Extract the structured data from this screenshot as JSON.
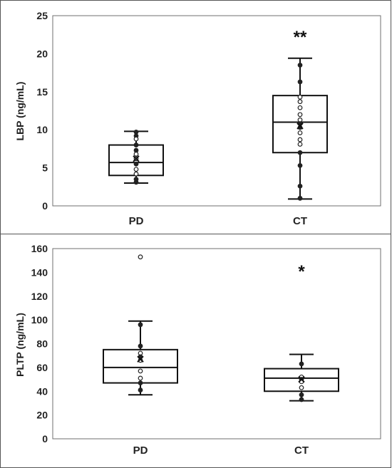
{
  "chart_data": [
    {
      "type": "boxplot",
      "ylabel": "LBP (ng/mL)",
      "ylim": [
        0,
        25
      ],
      "yticks": [
        "0",
        "5",
        "10",
        "15",
        "20",
        "25"
      ],
      "categories": [
        "PD",
        "CT"
      ],
      "grid": false,
      "boxes": [
        {
          "category": "PD",
          "whisker_low": 3.0,
          "q1": 4.0,
          "median": 5.7,
          "q3": 8.0,
          "whisker_high": 9.8,
          "mean": 6.2,
          "significance": "",
          "points": [
            {
              "value": 9.7,
              "filled": true
            },
            {
              "value": 9.2,
              "filled": true
            },
            {
              "value": 8.8,
              "filled": false
            },
            {
              "value": 8.0,
              "filled": true
            },
            {
              "value": 7.3,
              "filled": true
            },
            {
              "value": 6.8,
              "filled": false
            },
            {
              "value": 6.2,
              "filled": false
            },
            {
              "value": 5.5,
              "filled": true
            },
            {
              "value": 4.8,
              "filled": false
            },
            {
              "value": 4.2,
              "filled": false
            },
            {
              "value": 3.5,
              "filled": true
            },
            {
              "value": 3.1,
              "filled": true
            }
          ]
        },
        {
          "category": "CT",
          "whisker_low": 0.9,
          "q1": 7.0,
          "median": 11.0,
          "q3": 14.5,
          "whisker_high": 19.4,
          "mean": 10.5,
          "significance": "**",
          "points": [
            {
              "value": 18.5,
              "filled": true
            },
            {
              "value": 16.3,
              "filled": true
            },
            {
              "value": 14.3,
              "filled": false
            },
            {
              "value": 13.7,
              "filled": false
            },
            {
              "value": 12.9,
              "filled": false
            },
            {
              "value": 12.0,
              "filled": false
            },
            {
              "value": 11.3,
              "filled": false
            },
            {
              "value": 10.8,
              "filled": true
            },
            {
              "value": 10.3,
              "filled": true
            },
            {
              "value": 9.6,
              "filled": false
            },
            {
              "value": 8.7,
              "filled": false
            },
            {
              "value": 8.1,
              "filled": false
            },
            {
              "value": 7.0,
              "filled": true
            },
            {
              "value": 5.3,
              "filled": true
            },
            {
              "value": 2.6,
              "filled": true
            },
            {
              "value": 1.0,
              "filled": true
            }
          ]
        }
      ]
    },
    {
      "type": "boxplot",
      "ylabel": "PLTP (ng/mL)",
      "ylim": [
        0,
        160
      ],
      "yticks": [
        "0",
        "20",
        "40",
        "60",
        "80",
        "100",
        "120",
        "140",
        "160"
      ],
      "categories": [
        "PD",
        "CT"
      ],
      "grid": false,
      "boxes": [
        {
          "category": "PD",
          "whisker_low": 37,
          "q1": 47,
          "median": 60,
          "q3": 75,
          "whisker_high": 99,
          "mean": 67,
          "significance": "",
          "points": [
            {
              "value": 153,
              "filled": false
            },
            {
              "value": 96,
              "filled": true
            },
            {
              "value": 78,
              "filled": true
            },
            {
              "value": 72,
              "filled": false
            },
            {
              "value": 69,
              "filled": true
            },
            {
              "value": 66,
              "filled": false
            },
            {
              "value": 57,
              "filled": false
            },
            {
              "value": 51,
              "filled": false
            },
            {
              "value": 47,
              "filled": true
            },
            {
              "value": 41,
              "filled": true
            }
          ]
        },
        {
          "category": "CT",
          "whisker_low": 32,
          "q1": 40,
          "median": 51,
          "q3": 59,
          "whisker_high": 71,
          "mean": 50,
          "significance": "*",
          "points": [
            {
              "value": 63,
              "filled": true
            },
            {
              "value": 52,
              "filled": false
            },
            {
              "value": 50,
              "filled": true
            },
            {
              "value": 48,
              "filled": false
            },
            {
              "value": 43,
              "filled": false
            },
            {
              "value": 37,
              "filled": true
            },
            {
              "value": 33,
              "filled": true
            }
          ]
        }
      ]
    }
  ]
}
